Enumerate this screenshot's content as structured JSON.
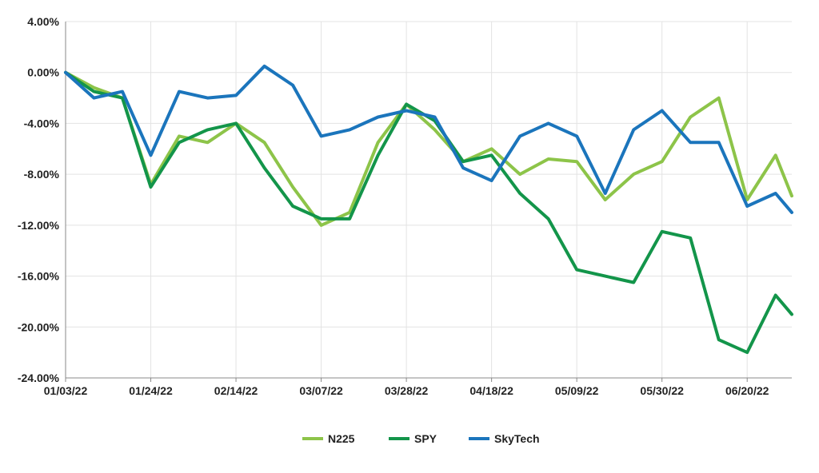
{
  "chart_data": {
    "type": "line",
    "title": "",
    "xlabel": "",
    "ylabel": "",
    "ylim": [
      -24,
      4
    ],
    "y_ticks": [
      "4.00%",
      "0.00%",
      "-4.00%",
      "-8.00%",
      "-12.00%",
      "-16.00%",
      "-20.00%",
      "-24.00%"
    ],
    "x_ticks": [
      "01/03/22",
      "01/24/22",
      "02/14/22",
      "03/07/22",
      "03/28/22",
      "04/18/22",
      "05/09/22",
      "05/30/22",
      "06/20/22"
    ],
    "x": [
      "01/03/22",
      "01/10/22",
      "01/17/22",
      "01/24/22",
      "01/31/22",
      "02/07/22",
      "02/14/22",
      "02/21/22",
      "02/28/22",
      "03/07/22",
      "03/14/22",
      "03/21/22",
      "03/28/22",
      "04/04/22",
      "04/11/22",
      "04/18/22",
      "04/25/22",
      "05/02/22",
      "05/09/22",
      "05/16/22",
      "05/23/22",
      "05/30/22",
      "06/06/22",
      "06/13/22",
      "06/20/22",
      "06/27/22",
      "07/01/22"
    ],
    "grid": true,
    "legend_position": "bottom",
    "series": [
      {
        "name": "N225",
        "color": "#8dc449",
        "values": [
          0.0,
          -1.2,
          -2.0,
          -8.8,
          -5.0,
          -5.5,
          -4.0,
          -5.5,
          -9.0,
          -12.0,
          -11.0,
          -5.5,
          -2.5,
          -4.5,
          -7.0,
          -6.0,
          -8.0,
          -6.8,
          -7.0,
          -10.0,
          -8.0,
          -7.0,
          -3.5,
          -2.0,
          -10.0,
          -6.5,
          -9.7
        ]
      },
      {
        "name": "SPY",
        "color": "#13954a",
        "values": [
          0.0,
          -1.5,
          -2.0,
          -9.0,
          -5.5,
          -4.5,
          -4.0,
          -7.5,
          -10.5,
          -11.5,
          -11.5,
          -6.5,
          -2.5,
          -3.8,
          -7.0,
          -6.5,
          -9.5,
          -11.5,
          -15.5,
          -16.0,
          -16.5,
          -12.5,
          -13.0,
          -21.0,
          -22.0,
          -17.5,
          -19.0
        ]
      },
      {
        "name": "SkyTech",
        "color": "#1b75bc",
        "values": [
          0.0,
          -2.0,
          -1.5,
          -6.5,
          -1.5,
          -2.0,
          -1.8,
          0.5,
          -1.0,
          -5.0,
          -4.5,
          -3.5,
          -3.0,
          -3.5,
          -7.5,
          -8.5,
          -5.0,
          -4.0,
          -5.0,
          -9.5,
          -4.5,
          -3.0,
          -5.5,
          -5.5,
          -10.5,
          -9.5,
          -11.0
        ]
      }
    ]
  }
}
